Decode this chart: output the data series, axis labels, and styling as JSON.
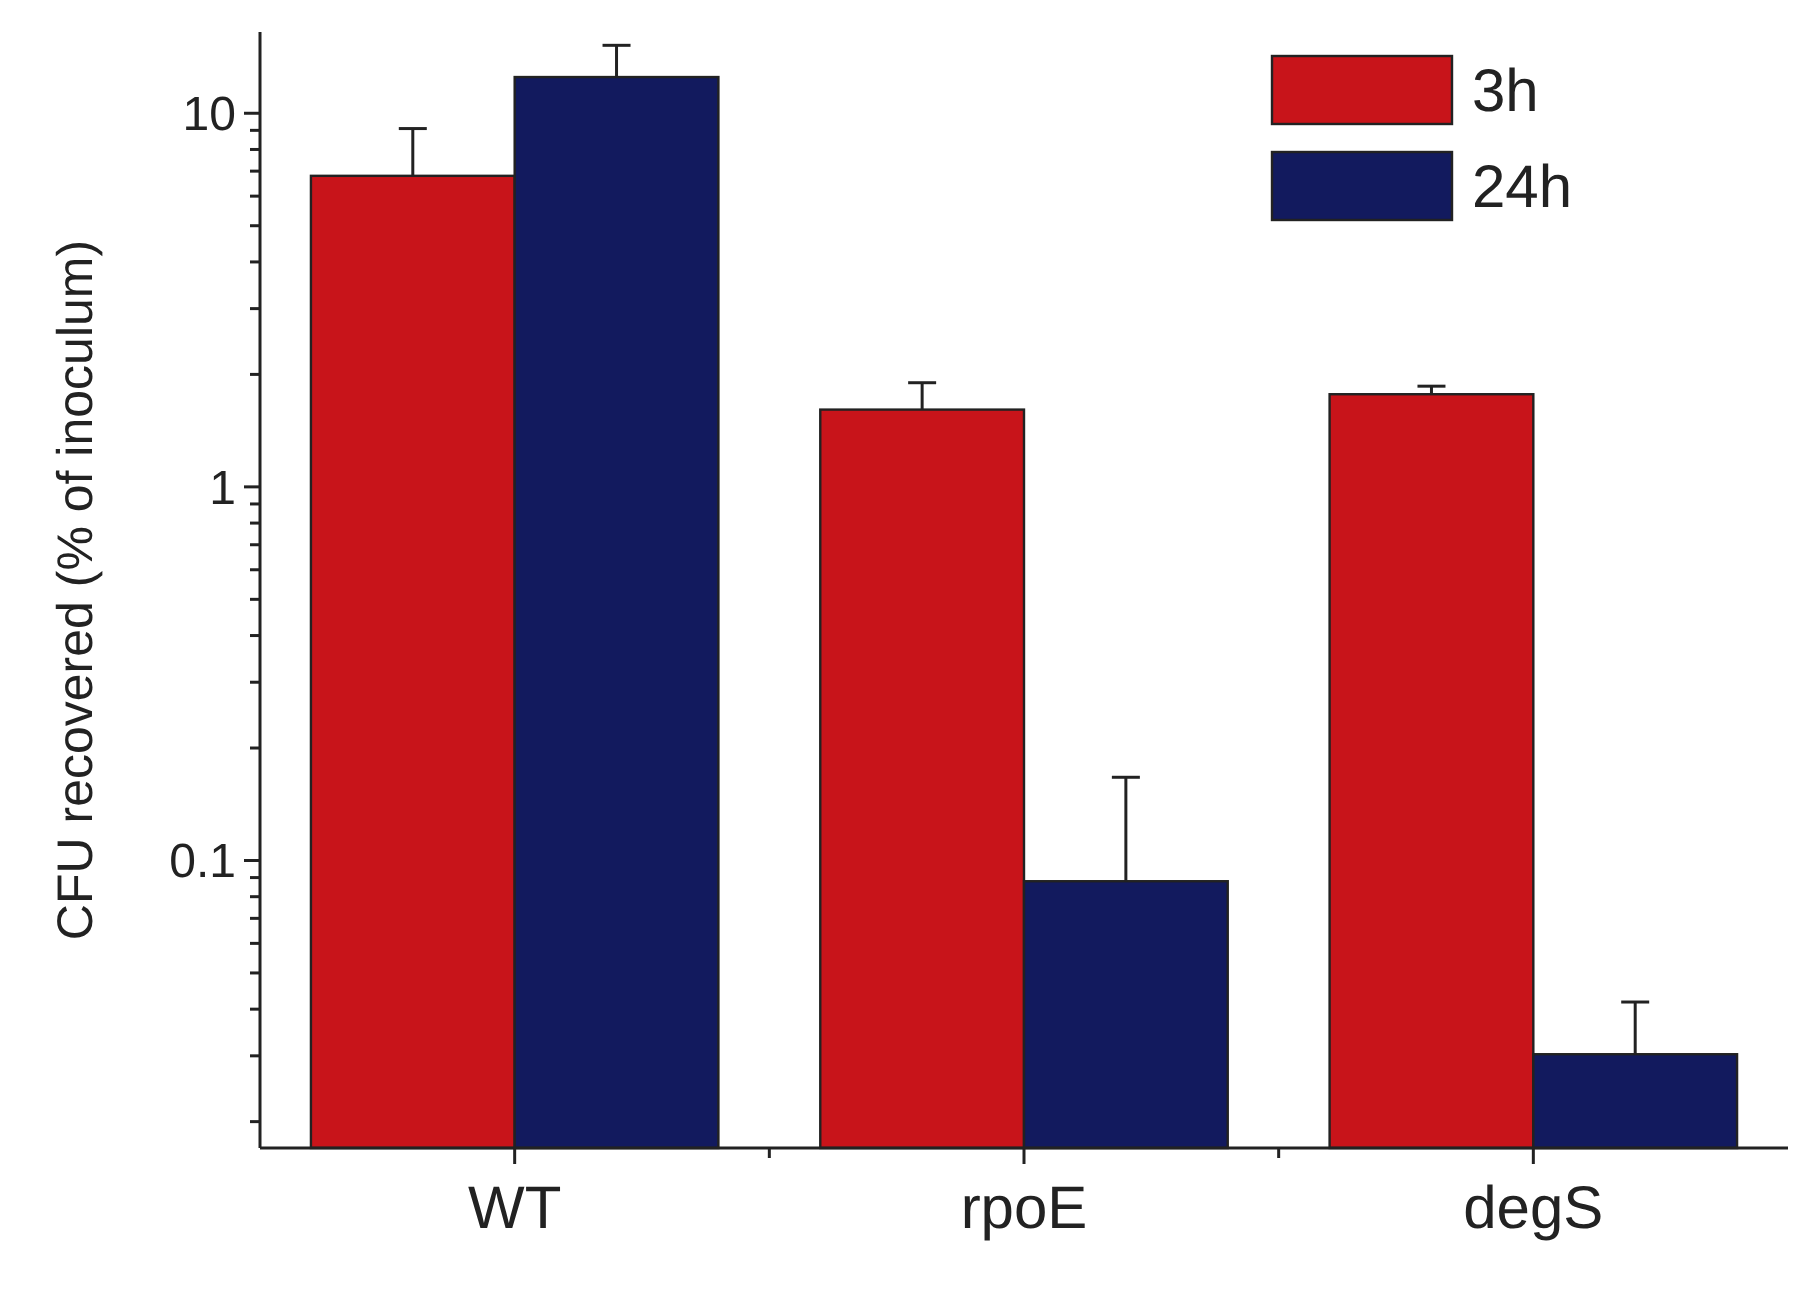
{
  "chart_data": {
    "type": "bar",
    "ylabel": "CFU recovered (% of inoculum)",
    "categories": [
      "WT",
      "rpoE",
      "degS"
    ],
    "series": [
      {
        "name": "3h",
        "color": "#c8141a",
        "values": [
          6.8,
          1.61,
          1.77
        ],
        "errors": [
          [
            6.8,
            9.1
          ],
          [
            1.61,
            1.9
          ],
          [
            1.77,
            1.86
          ]
        ]
      },
      {
        "name": "24h",
        "color": "#121a5e",
        "values": [
          12.5,
          0.088,
          0.0303
        ],
        "errors": [
          [
            12.5,
            15.2
          ],
          [
            0.088,
            0.167
          ],
          [
            0.0303,
            0.0418
          ]
        ]
      }
    ],
    "log": true,
    "ylim": [
      0.017,
      16.5
    ],
    "yticks": [
      {
        "value": 0.02,
        "label": null
      },
      {
        "value": 0.03,
        "label": null
      },
      {
        "value": 0.04,
        "label": null
      },
      {
        "value": 0.05,
        "label": null
      },
      {
        "value": 0.06,
        "label": null
      },
      {
        "value": 0.07,
        "label": null
      },
      {
        "value": 0.08,
        "label": null
      },
      {
        "value": 0.09,
        "label": null
      },
      0.1,
      {
        "value": 0.2,
        "label": null
      },
      {
        "value": 0.3,
        "label": null
      },
      {
        "value": 0.4,
        "label": null
      },
      {
        "value": 0.5,
        "label": null
      },
      {
        "value": 0.6,
        "label": null
      },
      {
        "value": 0.7,
        "label": null
      },
      {
        "value": 0.8,
        "label": null
      },
      {
        "value": 0.9,
        "label": null
      },
      1,
      {
        "value": 2,
        "label": null
      },
      {
        "value": 3,
        "label": null
      },
      {
        "value": 4,
        "label": null
      },
      {
        "value": 5,
        "label": null
      },
      {
        "value": 6,
        "label": null
      },
      {
        "value": 7,
        "label": null
      },
      {
        "value": 8,
        "label": null
      },
      {
        "value": 9,
        "label": null
      },
      10
    ],
    "grid": false,
    "legend": "top right"
  }
}
